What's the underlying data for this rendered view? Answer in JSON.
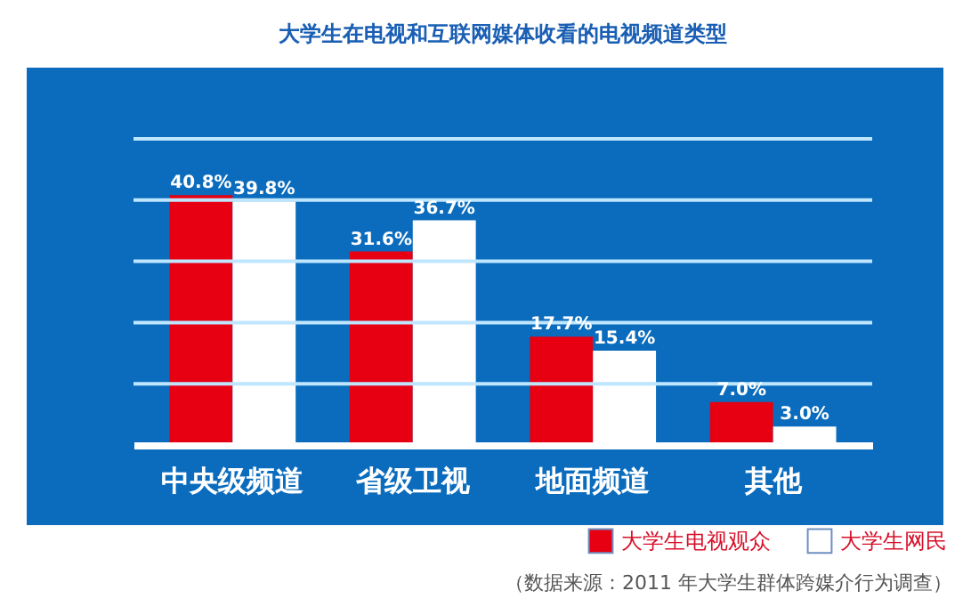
{
  "chart_data": {
    "type": "bar",
    "title": "大学生在电视和互联网媒体收看的电视频道类型",
    "categories": [
      "中央级频道",
      "省级卫视",
      "地面频道",
      "其他"
    ],
    "series": [
      {
        "name": "大学生电视观众",
        "color": "#e60012",
        "values": [
          40.8,
          31.6,
          17.7,
          7.0
        ],
        "value_labels": [
          "40.8%",
          "31.6%",
          "17.7%",
          "7.0%"
        ]
      },
      {
        "name": "大学生网民",
        "color": "#ffffff",
        "values": [
          39.8,
          36.7,
          15.4,
          3.0
        ],
        "value_labels": [
          "39.8%",
          "36.7%",
          "15.4%",
          "3.0%"
        ]
      }
    ],
    "ylim": [
      0,
      50
    ],
    "yticks": [
      {
        "value": 10,
        "label": null
      },
      {
        "value": 20,
        "label": null
      },
      {
        "value": 30,
        "label": null
      },
      {
        "value": 40,
        "label": null
      },
      {
        "value": 50,
        "label": null
      }
    ],
    "grid": "y",
    "tick_labels": "x",
    "legend": "bottom right",
    "annotations": [
      "（数据来源：2011 年大学生群体跨媒介行为调查）"
    ]
  }
}
